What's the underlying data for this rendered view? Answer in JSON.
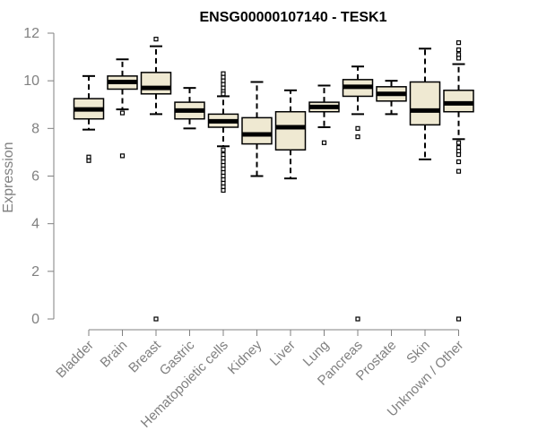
{
  "chart_data": {
    "type": "boxplot",
    "title": "ENSG00000107140 - TESK1",
    "xlabel": "",
    "ylabel": "Expression",
    "ylim": [
      0,
      12
    ],
    "yticks": [
      "0",
      "2",
      "4",
      "6",
      "8",
      "10",
      "12"
    ],
    "grid": false,
    "box_fill": "#efe9d2",
    "categories": [
      "Bladder",
      "Brain",
      "Breast",
      "Gastric",
      "Hematopoietic cells",
      "Kidney",
      "Liver",
      "Lung",
      "Pancreas",
      "Prostate",
      "Skin",
      "Unknown / Other"
    ],
    "boxes": [
      {
        "q1": 8.4,
        "median": 8.8,
        "q3": 9.25,
        "whisker_low": 7.95,
        "whisker_high": 10.2,
        "outliers": [
          6.65,
          6.8
        ]
      },
      {
        "q1": 9.65,
        "median": 9.95,
        "q3": 10.2,
        "whisker_low": 8.8,
        "whisker_high": 10.9,
        "outliers": [
          6.85,
          8.65
        ]
      },
      {
        "q1": 9.45,
        "median": 9.7,
        "q3": 10.35,
        "whisker_low": 8.6,
        "whisker_high": 11.45,
        "outliers": [
          11.75,
          0.0
        ]
      },
      {
        "q1": 8.4,
        "median": 8.75,
        "q3": 9.1,
        "whisker_low": 8.0,
        "whisker_high": 9.7,
        "outliers": []
      },
      {
        "q1": 8.05,
        "median": 8.3,
        "q3": 8.6,
        "whisker_low": 7.25,
        "whisker_high": 9.35,
        "outliers": [
          10.3,
          10.15,
          10.0,
          9.85,
          9.7,
          9.55,
          9.45,
          7.1,
          6.9,
          6.75,
          6.6,
          6.45,
          6.3,
          6.15,
          6.0,
          5.85,
          5.7,
          5.55,
          5.4
        ]
      },
      {
        "q1": 7.35,
        "median": 7.75,
        "q3": 8.45,
        "whisker_low": 6.0,
        "whisker_high": 9.95,
        "outliers": []
      },
      {
        "q1": 7.1,
        "median": 8.05,
        "q3": 8.7,
        "whisker_low": 5.9,
        "whisker_high": 9.6,
        "outliers": []
      },
      {
        "q1": 8.7,
        "median": 8.9,
        "q3": 9.1,
        "whisker_low": 8.05,
        "whisker_high": 9.8,
        "outliers": [
          7.4
        ]
      },
      {
        "q1": 9.35,
        "median": 9.75,
        "q3": 10.05,
        "whisker_low": 8.6,
        "whisker_high": 10.6,
        "outliers": [
          8.0,
          7.65,
          0.0
        ]
      },
      {
        "q1": 9.15,
        "median": 9.45,
        "q3": 9.75,
        "whisker_low": 8.6,
        "whisker_high": 10.0,
        "outliers": []
      },
      {
        "q1": 8.15,
        "median": 8.75,
        "q3": 9.95,
        "whisker_low": 6.7,
        "whisker_high": 11.35,
        "outliers": []
      },
      {
        "q1": 8.7,
        "median": 9.05,
        "q3": 9.6,
        "whisker_low": 7.55,
        "whisker_high": 10.7,
        "outliers": [
          11.6,
          11.3,
          11.1,
          10.95,
          7.4,
          7.2,
          7.05,
          6.9,
          6.6,
          6.2,
          0.0
        ]
      }
    ]
  }
}
